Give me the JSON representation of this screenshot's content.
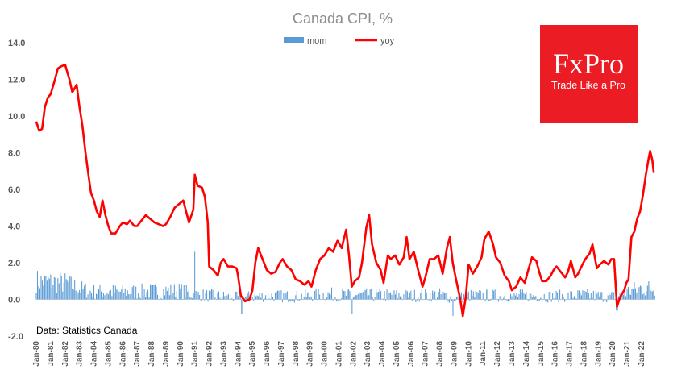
{
  "chart_data": {
    "type": "bar+line",
    "title": "Canada CPI, %",
    "ylim": [
      -2.0,
      14.0
    ],
    "yticks": [
      "14.0",
      "12.0",
      "10.0",
      "8.0",
      "6.0",
      "4.0",
      "2.0",
      "0.0",
      "-2.0"
    ],
    "ytick_values": [
      14,
      12,
      10,
      8,
      6,
      4,
      2,
      0,
      -2
    ],
    "x_start_year": 1980,
    "x_end_year": 2022.9,
    "xtick_labels": [
      "Jan-80",
      "Jan-81",
      "Jan-82",
      "Jan-83",
      "Jan-84",
      "Jan-85",
      "Jan-86",
      "Jan-87",
      "Jan-88",
      "Jan-89",
      "Jan-90",
      "Jan-91",
      "Jan-92",
      "Jan-93",
      "Jan-94",
      "Jan-95",
      "Jan-96",
      "Jan-97",
      "Jan-98",
      "Jan-99",
      "Jan-00",
      "Jan-01",
      "Jan-02",
      "Jan-03",
      "Jan-04",
      "Jan-05",
      "Jan-06",
      "Jan-07",
      "Jan-08",
      "Jan-09",
      "Jan-10",
      "Jan-11",
      "Jan-12",
      "Jan-13",
      "Jan-14",
      "Jan-15",
      "Jan-16",
      "Jan-17",
      "Jan-18",
      "Jan-19",
      "Jan-20",
      "Jan-21",
      "Jan-22"
    ],
    "legend": [
      {
        "name": "mom",
        "type": "bar",
        "color": "#5b9bd5"
      },
      {
        "name": "yoy",
        "type": "line",
        "color": "#ff0000"
      }
    ],
    "series_yoy": {
      "name": "yoy",
      "points": [
        [
          1980.0,
          9.7
        ],
        [
          1980.2,
          9.2
        ],
        [
          1980.4,
          9.3
        ],
        [
          1980.6,
          10.5
        ],
        [
          1980.8,
          11.0
        ],
        [
          1981.0,
          11.2
        ],
        [
          1981.3,
          12.0
        ],
        [
          1981.5,
          12.6
        ],
        [
          1981.7,
          12.7
        ],
        [
          1982.0,
          12.8
        ],
        [
          1982.3,
          12.0
        ],
        [
          1982.5,
          11.3
        ],
        [
          1982.8,
          11.7
        ],
        [
          1983.0,
          10.5
        ],
        [
          1983.2,
          9.5
        ],
        [
          1983.4,
          8.1
        ],
        [
          1983.6,
          6.9
        ],
        [
          1983.8,
          5.8
        ],
        [
          1984.0,
          5.4
        ],
        [
          1984.2,
          4.8
        ],
        [
          1984.4,
          4.5
        ],
        [
          1984.6,
          5.4
        ],
        [
          1984.8,
          4.6
        ],
        [
          1985.0,
          4.0
        ],
        [
          1985.2,
          3.6
        ],
        [
          1985.5,
          3.6
        ],
        [
          1985.8,
          4.0
        ],
        [
          1986.0,
          4.2
        ],
        [
          1986.3,
          4.1
        ],
        [
          1986.5,
          4.3
        ],
        [
          1986.8,
          4.0
        ],
        [
          1987.0,
          4.0
        ],
        [
          1987.3,
          4.3
        ],
        [
          1987.6,
          4.6
        ],
        [
          1987.9,
          4.4
        ],
        [
          1988.2,
          4.2
        ],
        [
          1988.5,
          4.1
        ],
        [
          1988.8,
          4.0
        ],
        [
          1989.0,
          4.1
        ],
        [
          1989.3,
          4.5
        ],
        [
          1989.6,
          5.0
        ],
        [
          1989.9,
          5.2
        ],
        [
          1990.2,
          5.4
        ],
        [
          1990.4,
          4.8
        ],
        [
          1990.6,
          4.2
        ],
        [
          1990.9,
          4.9
        ],
        [
          1991.0,
          6.8
        ],
        [
          1991.2,
          6.2
        ],
        [
          1991.5,
          6.1
        ],
        [
          1991.7,
          5.6
        ],
        [
          1991.9,
          4.2
        ],
        [
          1992.0,
          1.8
        ],
        [
          1992.3,
          1.6
        ],
        [
          1992.6,
          1.3
        ],
        [
          1992.8,
          2.0
        ],
        [
          1993.0,
          2.2
        ],
        [
          1993.3,
          1.8
        ],
        [
          1993.6,
          1.8
        ],
        [
          1993.9,
          1.7
        ],
        [
          1994.0,
          1.3
        ],
        [
          1994.2,
          0.2
        ],
        [
          1994.5,
          -0.1
        ],
        [
          1994.8,
          0.0
        ],
        [
          1995.0,
          0.5
        ],
        [
          1995.2,
          2.0
        ],
        [
          1995.4,
          2.8
        ],
        [
          1995.7,
          2.2
        ],
        [
          1996.0,
          1.6
        ],
        [
          1996.3,
          1.4
        ],
        [
          1996.6,
          1.5
        ],
        [
          1996.9,
          2.0
        ],
        [
          1997.1,
          2.2
        ],
        [
          1997.4,
          1.8
        ],
        [
          1997.7,
          1.6
        ],
        [
          1998.0,
          1.1
        ],
        [
          1998.3,
          1.0
        ],
        [
          1998.6,
          0.8
        ],
        [
          1998.9,
          1.0
        ],
        [
          1999.1,
          0.7
        ],
        [
          1999.4,
          1.6
        ],
        [
          1999.7,
          2.2
        ],
        [
          2000.0,
          2.4
        ],
        [
          2000.3,
          2.8
        ],
        [
          2000.6,
          2.6
        ],
        [
          2000.9,
          3.2
        ],
        [
          2001.2,
          2.8
        ],
        [
          2001.5,
          3.8
        ],
        [
          2001.7,
          2.4
        ],
        [
          2001.9,
          0.7
        ],
        [
          2002.1,
          1.0
        ],
        [
          2002.4,
          1.2
        ],
        [
          2002.6,
          2.0
        ],
        [
          2002.9,
          3.9
        ],
        [
          2003.1,
          4.6
        ],
        [
          2003.3,
          3.0
        ],
        [
          2003.6,
          2.0
        ],
        [
          2003.9,
          1.6
        ],
        [
          2004.1,
          0.9
        ],
        [
          2004.4,
          2.4
        ],
        [
          2004.6,
          2.2
        ],
        [
          2004.9,
          2.4
        ],
        [
          2005.2,
          1.9
        ],
        [
          2005.5,
          2.3
        ],
        [
          2005.7,
          3.4
        ],
        [
          2005.9,
          2.2
        ],
        [
          2006.2,
          2.6
        ],
        [
          2006.5,
          1.6
        ],
        [
          2006.8,
          0.7
        ],
        [
          2007.0,
          1.2
        ],
        [
          2007.3,
          2.2
        ],
        [
          2007.6,
          2.2
        ],
        [
          2007.9,
          2.4
        ],
        [
          2008.2,
          1.4
        ],
        [
          2008.5,
          2.8
        ],
        [
          2008.7,
          3.4
        ],
        [
          2008.9,
          2.0
        ],
        [
          2009.1,
          1.2
        ],
        [
          2009.4,
          0.1
        ],
        [
          2009.6,
          -0.9
        ],
        [
          2009.8,
          0.1
        ],
        [
          2010.0,
          1.9
        ],
        [
          2010.3,
          1.4
        ],
        [
          2010.6,
          1.8
        ],
        [
          2010.9,
          2.3
        ],
        [
          2011.1,
          3.3
        ],
        [
          2011.4,
          3.7
        ],
        [
          2011.7,
          3.0
        ],
        [
          2011.9,
          2.3
        ],
        [
          2012.2,
          2.0
        ],
        [
          2012.5,
          1.3
        ],
        [
          2012.8,
          1.0
        ],
        [
          2013.0,
          0.5
        ],
        [
          2013.3,
          0.7
        ],
        [
          2013.6,
          1.2
        ],
        [
          2013.9,
          0.9
        ],
        [
          2014.1,
          1.5
        ],
        [
          2014.4,
          2.3
        ],
        [
          2014.7,
          2.1
        ],
        [
          2014.9,
          1.5
        ],
        [
          2015.1,
          1.0
        ],
        [
          2015.4,
          1.0
        ],
        [
          2015.7,
          1.3
        ],
        [
          2015.9,
          1.6
        ],
        [
          2016.1,
          1.8
        ],
        [
          2016.4,
          1.5
        ],
        [
          2016.7,
          1.2
        ],
        [
          2016.9,
          1.5
        ],
        [
          2017.1,
          2.1
        ],
        [
          2017.4,
          1.2
        ],
        [
          2017.6,
          1.4
        ],
        [
          2017.9,
          1.9
        ],
        [
          2018.1,
          2.2
        ],
        [
          2018.4,
          2.5
        ],
        [
          2018.6,
          3.0
        ],
        [
          2018.9,
          1.7
        ],
        [
          2019.1,
          1.9
        ],
        [
          2019.4,
          2.1
        ],
        [
          2019.7,
          1.9
        ],
        [
          2019.9,
          2.2
        ],
        [
          2020.1,
          2.2
        ],
        [
          2020.3,
          -0.4
        ],
        [
          2020.5,
          0.1
        ],
        [
          2020.8,
          0.5
        ],
        [
          2020.95,
          0.9
        ],
        [
          2021.1,
          1.1
        ],
        [
          2021.3,
          3.4
        ],
        [
          2021.5,
          3.7
        ],
        [
          2021.7,
          4.4
        ],
        [
          2021.9,
          4.8
        ],
        [
          2022.1,
          5.7
        ],
        [
          2022.3,
          6.8
        ],
        [
          2022.5,
          7.7
        ],
        [
          2022.6,
          8.1
        ],
        [
          2022.75,
          7.6
        ],
        [
          2022.85,
          6.9
        ]
      ]
    },
    "series_mom_note": "monthly m/m % change bars, values mostly between -0.5 and 1.5; 1991 peak 2.6",
    "series_mom_anchors": [
      [
        1980,
        0.9
      ],
      [
        1982,
        0.8
      ],
      [
        1983,
        0.5
      ],
      [
        1984,
        0.35
      ],
      [
        1985,
        0.35
      ],
      [
        1987,
        0.35
      ],
      [
        1989,
        0.4
      ],
      [
        1990,
        0.4
      ],
      [
        1991,
        0.2
      ],
      [
        1992,
        0.15
      ],
      [
        1994,
        0.05
      ],
      [
        1996,
        0.15
      ],
      [
        1998,
        0.1
      ],
      [
        2000,
        0.22
      ],
      [
        2002,
        0.18
      ],
      [
        2004,
        0.18
      ],
      [
        2006,
        0.15
      ],
      [
        2008,
        0.2
      ],
      [
        2009,
        0.0
      ],
      [
        2010,
        0.15
      ],
      [
        2012,
        0.15
      ],
      [
        2014,
        0.15
      ],
      [
        2016,
        0.12
      ],
      [
        2018,
        0.17
      ],
      [
        2020,
        0.1
      ],
      [
        2021,
        0.35
      ],
      [
        2022,
        0.55
      ],
      [
        2022.9,
        0.5
      ]
    ],
    "mom_spikes": [
      [
        1991.0,
        2.6
      ],
      [
        2020.3,
        -0.6
      ],
      [
        2008.9,
        -0.9
      ],
      [
        2001.9,
        -0.8
      ],
      [
        1994.3,
        -0.8
      ]
    ]
  },
  "source_text": "Data: Statistics Canada",
  "logo": {
    "brand": "FxPro",
    "tagline": "Trade Like a Pro",
    "bg_color": "#ec1c24"
  }
}
